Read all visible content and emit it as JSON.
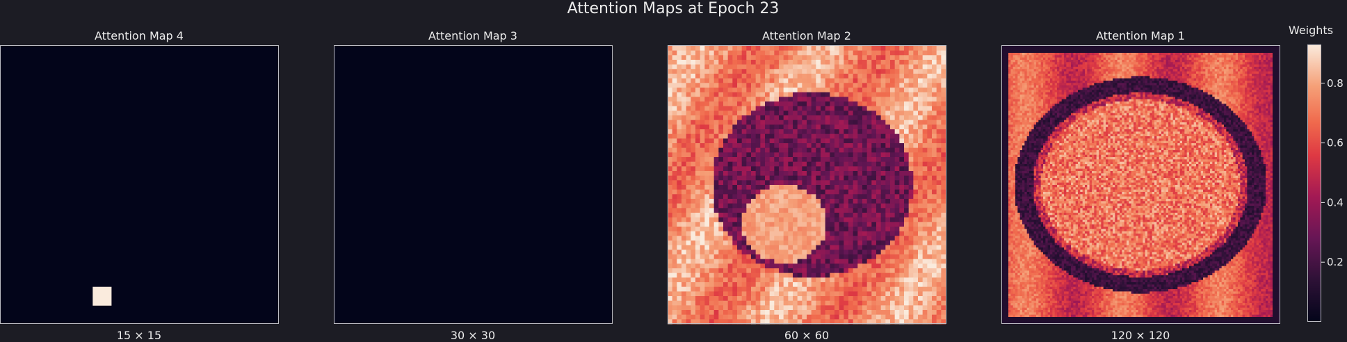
{
  "title": "Attention Maps at Epoch 23",
  "colors": {
    "background": "#1c1c24",
    "frame": "#bdbdc4",
    "text": "#ececec"
  },
  "colorbar": {
    "label": "Weights",
    "ticks": [
      "0.2",
      "0.4",
      "0.6",
      "0.8"
    ],
    "tick_values": [
      0.2,
      0.4,
      0.6,
      0.8
    ],
    "vmin": 0.0,
    "vmax": 0.93,
    "colormap": "rocket"
  },
  "chart_data": [
    {
      "type": "heatmap",
      "title": "Attention Map 4",
      "xlabel": "15 × 15",
      "grid": [
        15,
        15
      ],
      "pattern": "single_hotspot",
      "hotspot": {
        "row": 13,
        "col": 5,
        "value": 0.93
      },
      "background_value": 0.0
    },
    {
      "type": "heatmap",
      "title": "Attention Map 3",
      "xlabel": "30 × 30",
      "grid": [
        30,
        30
      ],
      "pattern": "uniform",
      "background_value": 0.0
    },
    {
      "type": "heatmap",
      "title": "Attention Map 2",
      "xlabel": "60 × 60",
      "grid": [
        60,
        60
      ],
      "pattern": "blob",
      "outer_value": 0.75,
      "inner_value": 0.3,
      "bright_patch_value": 0.85
    },
    {
      "type": "heatmap",
      "title": "Attention Map 1",
      "xlabel": "120 × 120",
      "grid": [
        120,
        120
      ],
      "pattern": "ellipse_texture",
      "outer_value": 0.6,
      "ring_value": 0.1,
      "inner_value": 0.7
    }
  ]
}
